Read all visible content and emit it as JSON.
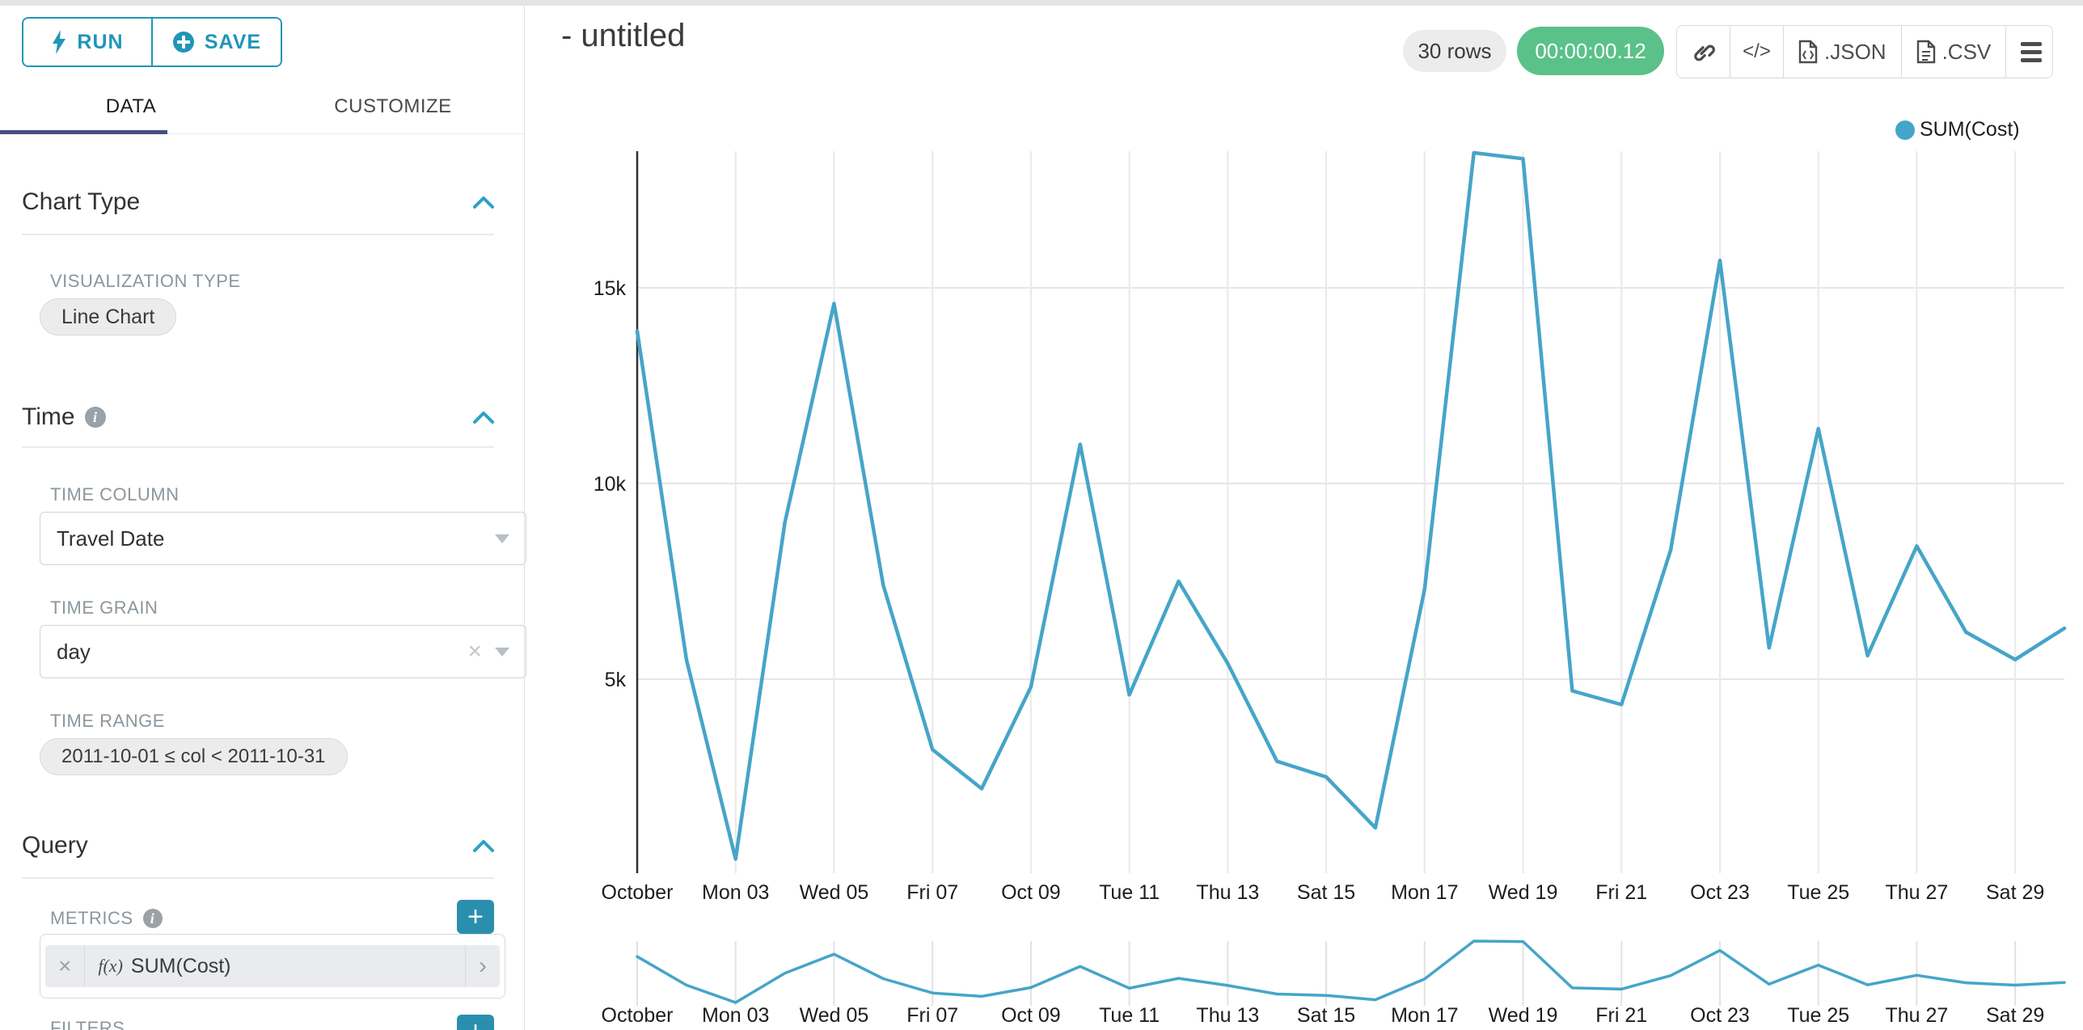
{
  "accent": {
    "teal": "#2096b8",
    "line": "#45a5c8",
    "green": "#5ac189",
    "tab_underline": "#454e7e"
  },
  "sidebar": {
    "run_label": "RUN",
    "save_label": "SAVE",
    "tabs": [
      "DATA",
      "CUSTOMIZE"
    ],
    "chart_type": {
      "title": "Chart Type",
      "viz_label": "VISUALIZATION TYPE",
      "viz_value": "Line Chart"
    },
    "time": {
      "title": "Time",
      "column_label": "TIME COLUMN",
      "column_value": "Travel Date",
      "grain_label": "TIME GRAIN",
      "grain_value": "day",
      "range_label": "TIME RANGE",
      "range_value": "2011-10-01 ≤ col < 2011-10-31"
    },
    "query": {
      "title": "Query",
      "metrics_label": "METRICS",
      "metric_fx": "f(x)",
      "metric_value": "SUM(Cost)",
      "filters_label": "FILTERS"
    }
  },
  "header": {
    "title": "- untitled",
    "rows_badge": "30 rows",
    "timer": "00:00:00.12",
    "code_label": "</>",
    "json_label": ".JSON",
    "csv_label": ".CSV"
  },
  "legend": {
    "label": "SUM(Cost)"
  },
  "chart_data": {
    "type": "line",
    "x": [
      "Oct 01",
      "Oct 02",
      "Oct 03",
      "Oct 04",
      "Oct 05",
      "Oct 06",
      "Oct 07",
      "Oct 08",
      "Oct 09",
      "Oct 10",
      "Oct 11",
      "Oct 12",
      "Oct 13",
      "Oct 14",
      "Oct 15",
      "Oct 16",
      "Oct 17",
      "Oct 18",
      "Oct 19",
      "Oct 20",
      "Oct 21",
      "Oct 22",
      "Oct 23",
      "Oct 24",
      "Oct 25",
      "Oct 26",
      "Oct 27",
      "Oct 28",
      "Oct 29",
      "Oct 30"
    ],
    "series": [
      {
        "name": "SUM(Cost)",
        "values": [
          13900,
          5500,
          400,
          9000,
          14600,
          7400,
          3200,
          2200,
          4800,
          11000,
          4600,
          7500,
          5400,
          2900,
          2500,
          1200,
          7300,
          18450,
          18300,
          4700,
          4350,
          8300,
          15700,
          5800,
          11400,
          5600,
          8400,
          6200,
          5500,
          6300
        ]
      }
    ],
    "x_tick_labels": [
      "October",
      "Mon 03",
      "Wed 05",
      "Fri 07",
      "Oct 09",
      "Tue 11",
      "Thu 13",
      "Sat 15",
      "Mon 17",
      "Wed 19",
      "Fri 21",
      "Oct 23",
      "Tue 25",
      "Thu 27",
      "Sat 29"
    ],
    "x_tick_positions": [
      0,
      2,
      4,
      6,
      8,
      10,
      12,
      14,
      16,
      18,
      20,
      22,
      24,
      26,
      28
    ],
    "y_ticks": [
      {
        "label": "5k",
        "value": 5000
      },
      {
        "label": "10k",
        "value": 10000
      },
      {
        "label": "15k",
        "value": 15000
      }
    ],
    "ylim": [
      0,
      18500
    ],
    "grid": true,
    "legend_position": "top-right",
    "has_range_brush_minichart": true
  }
}
